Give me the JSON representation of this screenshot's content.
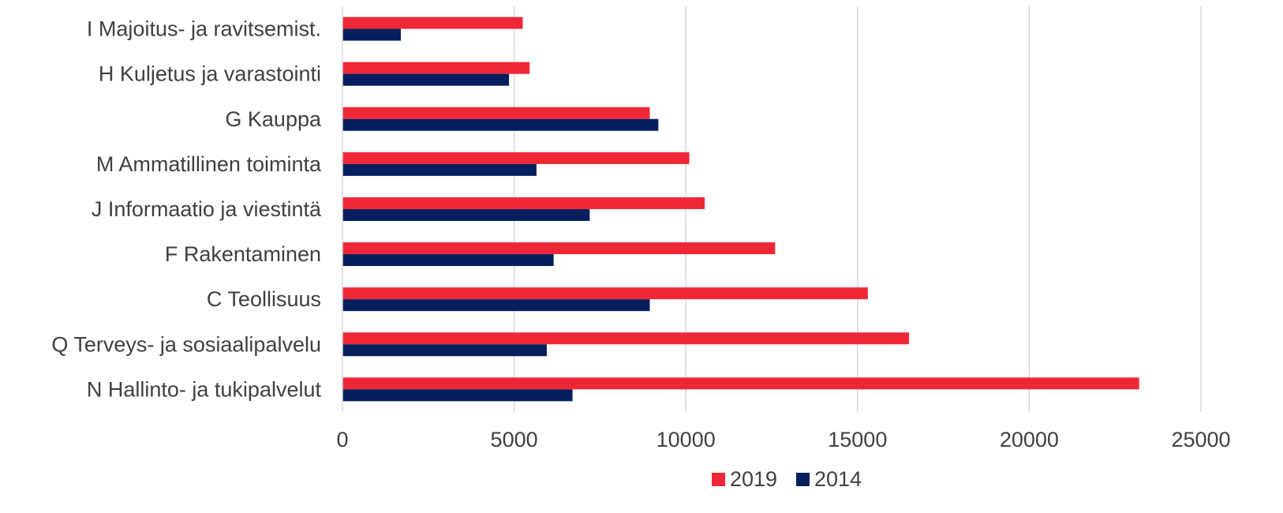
{
  "chart_data": {
    "type": "bar",
    "orientation": "horizontal",
    "categories": [
      "I Majoitus- ja ravitsemist.",
      "H Kuljetus ja varastointi",
      "G Kauppa",
      "M Ammatillinen toiminta",
      "J Informaatio ja viestintä",
      "F Rakentaminen",
      "C Teollisuus",
      "Q Terveys- ja sosiaalipalvelu",
      "N Hallinto- ja tukipalvelut"
    ],
    "series": [
      {
        "name": "2019",
        "color": "#EE2737",
        "values": [
          5250,
          5450,
          8950,
          10100,
          10550,
          12600,
          15300,
          16500,
          23200
        ]
      },
      {
        "name": "2014",
        "color": "#041E5E",
        "values": [
          1700,
          4850,
          9200,
          5650,
          7200,
          6150,
          8950,
          5950,
          6700
        ]
      }
    ],
    "xlim": [
      0,
      25000
    ],
    "xticks": [
      "0",
      "5000",
      "10000",
      "15000",
      "20000",
      "25000"
    ],
    "xtick_values": [
      0,
      5000,
      10000,
      15000,
      20000,
      25000
    ],
    "grid": "vertical",
    "gridline_color": "#D9D9D9",
    "legend_position": "bottom"
  }
}
